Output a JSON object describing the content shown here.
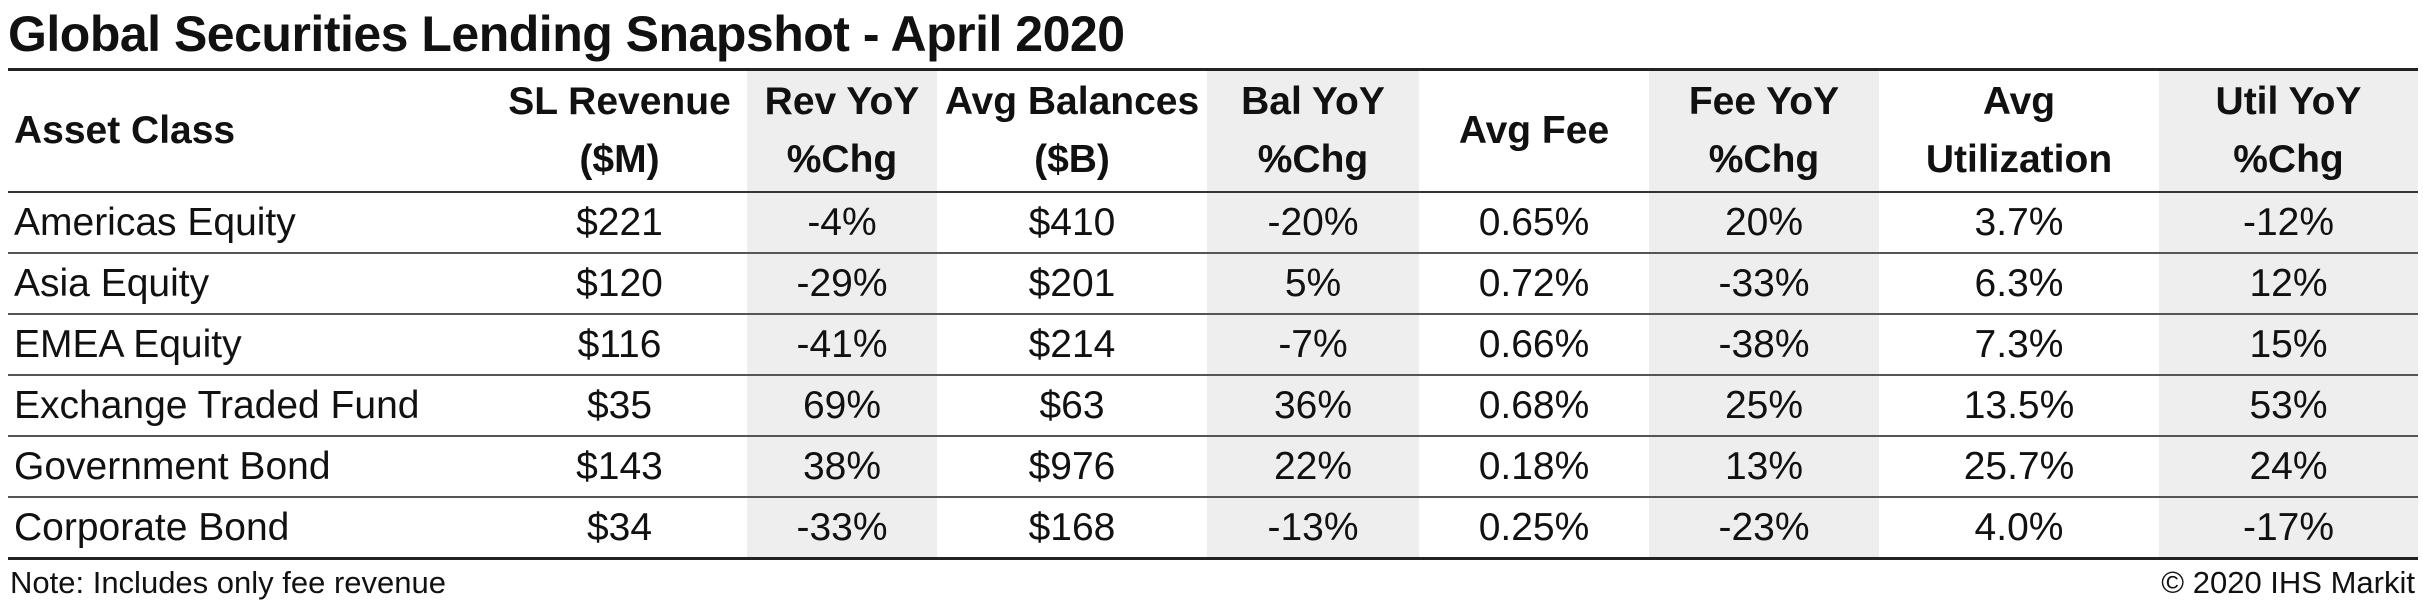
{
  "title": "Global Securities Lending Snapshot - April 2020",
  "note": "Note: Includes only fee revenue",
  "copyright": "© 2020 IHS Markit",
  "colors": {
    "shaded_column": "#eeeeee",
    "rule": "#222222"
  },
  "chart_data": {
    "type": "table",
    "title": "Global Securities Lending Snapshot - April 2020",
    "columns": [
      {
        "line1": "Asset Class",
        "line2": "",
        "shaded": false
      },
      {
        "line1": "SL Revenue",
        "line2": "($M)",
        "shaded": false
      },
      {
        "line1": "Rev YoY",
        "line2": "%Chg",
        "shaded": true
      },
      {
        "line1": "Avg Balances",
        "line2": "($B)",
        "shaded": false
      },
      {
        "line1": "Bal YoY",
        "line2": "%Chg",
        "shaded": true
      },
      {
        "line1": "Avg Fee",
        "line2": "",
        "shaded": false
      },
      {
        "line1": "Fee YoY",
        "line2": "%Chg",
        "shaded": true
      },
      {
        "line1": "Avg",
        "line2": "Utilization",
        "shaded": false
      },
      {
        "line1": "Util YoY",
        "line2": "%Chg",
        "shaded": true
      }
    ],
    "rows": [
      [
        "Americas Equity",
        "$221",
        "-4%",
        "$410",
        "-20%",
        "0.65%",
        "20%",
        "3.7%",
        "-12%"
      ],
      [
        "Asia Equity",
        "$120",
        "-29%",
        "$201",
        "5%",
        "0.72%",
        "-33%",
        "6.3%",
        "12%"
      ],
      [
        "EMEA Equity",
        "$116",
        "-41%",
        "$214",
        "-7%",
        "0.66%",
        "-38%",
        "7.3%",
        "15%"
      ],
      [
        "Exchange Traded Fund",
        "$35",
        "69%",
        "$63",
        "36%",
        "0.68%",
        "25%",
        "13.5%",
        "53%"
      ],
      [
        "Government Bond",
        "$143",
        "38%",
        "$976",
        "22%",
        "0.18%",
        "13%",
        "25.7%",
        "24%"
      ],
      [
        "Corporate Bond",
        "$34",
        "-33%",
        "$168",
        "-13%",
        "0.25%",
        "-23%",
        "4.0%",
        "-17%"
      ]
    ]
  }
}
